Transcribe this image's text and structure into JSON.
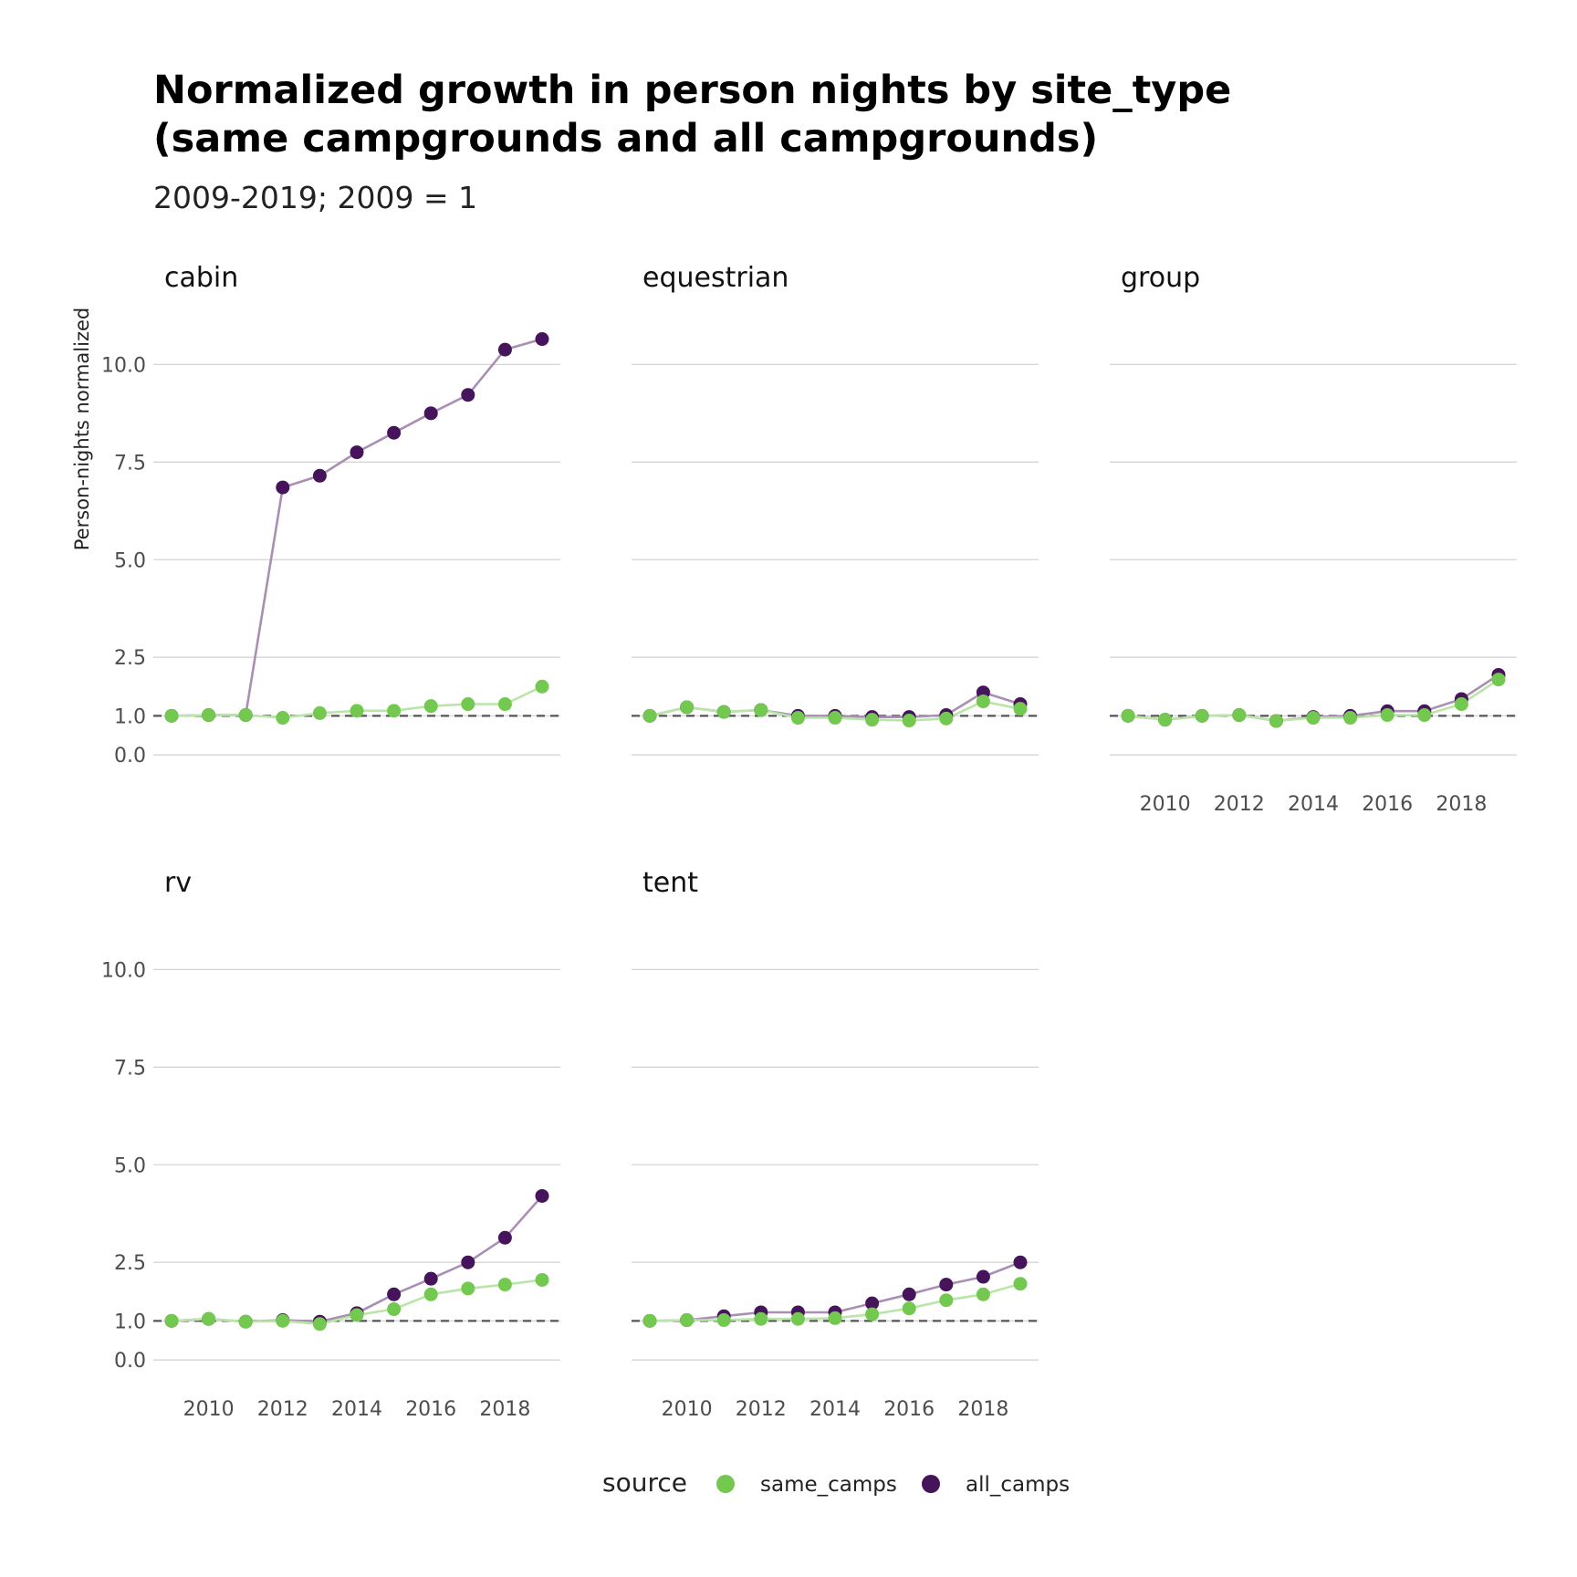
{
  "chart_data": {
    "type": "line",
    "title_lines": [
      "Normalized growth in person nights by site_type",
      "(same campgrounds and all campgrounds)"
    ],
    "subtitle": "2009-2019; 2009 = 1",
    "ylabel": "Person-nights normalized",
    "xlabel": "",
    "x": [
      2009,
      2010,
      2011,
      2012,
      2013,
      2014,
      2015,
      2016,
      2017,
      2018,
      2019
    ],
    "x_ticks": [
      "2010",
      "2012",
      "2014",
      "2016",
      "2018"
    ],
    "x_tick_values": [
      2010,
      2012,
      2014,
      2016,
      2018
    ],
    "y_ticks": [
      "0.0",
      "1.0",
      "2.5",
      "5.0",
      "7.5",
      "10.0"
    ],
    "y_tick_values": [
      0,
      1,
      2.5,
      5,
      7.5,
      10
    ],
    "ylim": [
      -0.3,
      11.2
    ],
    "reference_line": 1,
    "grid": true,
    "legend": {
      "title": "source",
      "position": "bottom",
      "entries": [
        {
          "name": "same_camps",
          "color": "#73c94f"
        },
        {
          "name": "all_camps",
          "color": "#45145a"
        }
      ]
    },
    "facets": [
      {
        "name": "cabin",
        "series": [
          {
            "name": "all_camps",
            "values": [
              1.0,
              1.02,
              1.02,
              6.85,
              7.15,
              7.75,
              8.25,
              8.75,
              9.22,
              10.38,
              10.65
            ]
          },
          {
            "name": "same_camps",
            "values": [
              1.0,
              1.02,
              1.02,
              0.95,
              1.07,
              1.13,
              1.13,
              1.25,
              1.3,
              1.3,
              1.75
            ]
          }
        ]
      },
      {
        "name": "equestrian",
        "series": [
          {
            "name": "all_camps",
            "values": [
              1.0,
              1.22,
              1.1,
              1.15,
              1.0,
              1.0,
              0.97,
              0.97,
              1.02,
              1.6,
              1.3
            ]
          },
          {
            "name": "same_camps",
            "values": [
              1.0,
              1.22,
              1.1,
              1.15,
              0.95,
              0.95,
              0.9,
              0.88,
              0.93,
              1.37,
              1.18
            ]
          }
        ]
      },
      {
        "name": "group",
        "series": [
          {
            "name": "all_camps",
            "values": [
              1.0,
              0.9,
              1.0,
              1.02,
              0.87,
              0.97,
              1.0,
              1.12,
              1.12,
              1.43,
              2.05
            ]
          },
          {
            "name": "same_camps",
            "values": [
              1.0,
              0.9,
              1.0,
              1.02,
              0.87,
              0.95,
              0.95,
              1.02,
              1.02,
              1.3,
              1.93
            ]
          }
        ]
      },
      {
        "name": "rv",
        "series": [
          {
            "name": "all_camps",
            "values": [
              1.0,
              1.05,
              0.98,
              1.02,
              0.98,
              1.2,
              1.68,
              2.08,
              2.5,
              3.13,
              4.2
            ]
          },
          {
            "name": "same_camps",
            "values": [
              1.0,
              1.05,
              0.98,
              1.0,
              0.92,
              1.15,
              1.3,
              1.68,
              1.83,
              1.93,
              2.05
            ]
          }
        ]
      },
      {
        "name": "tent",
        "series": [
          {
            "name": "all_camps",
            "values": [
              1.0,
              1.02,
              1.12,
              1.22,
              1.22,
              1.22,
              1.45,
              1.68,
              1.93,
              2.13,
              2.5
            ]
          },
          {
            "name": "same_camps",
            "values": [
              1.0,
              1.02,
              1.02,
              1.05,
              1.05,
              1.07,
              1.17,
              1.32,
              1.53,
              1.68,
              1.95
            ]
          }
        ]
      }
    ]
  },
  "colors": {
    "same_camps": "#73c94f",
    "same_camps_line": "#b9e6a8",
    "all_camps": "#45145a",
    "all_camps_line": "#a88fb3"
  }
}
